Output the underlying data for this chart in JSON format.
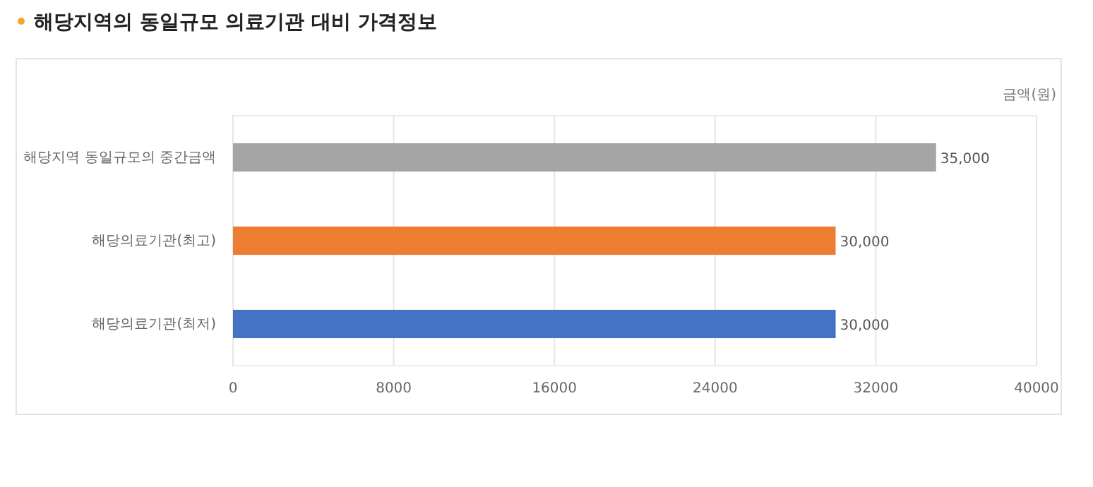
{
  "chart_data": {
    "type": "bar",
    "orientation": "horizontal",
    "title": "해당지역의 동일규모 의료기관 대비 가격정보",
    "xlabel": "금액(원)",
    "categories": [
      "해당지역 동일규모의 중간금액",
      "해당의료기관(최고)",
      "해당의료기관(최저)"
    ],
    "values": [
      35000,
      30000,
      30000
    ],
    "colors": [
      "#a5a5a5",
      "#ed7d31",
      "#4472c4"
    ],
    "value_labels": [
      "35,000",
      "30,000",
      "30,000"
    ],
    "xlim": [
      0,
      40000
    ],
    "xticks": [
      0,
      8000,
      16000,
      24000,
      32000,
      40000
    ],
    "grid": "x"
  }
}
